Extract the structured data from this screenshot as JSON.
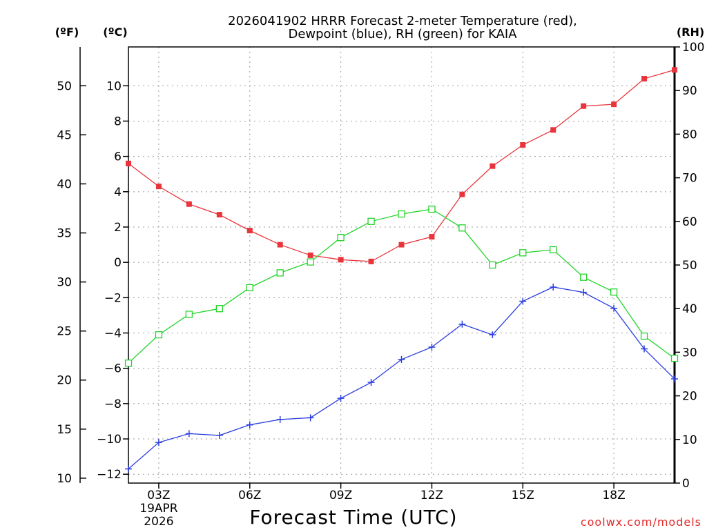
{
  "chart_data": {
    "type": "line",
    "title_line1": "2026041902 HRRR Forecast 2-meter Temperature (red),",
    "title_line2": "Dewpoint (blue), RH (green) for KAIA",
    "left_outer_unit": "(ºF)",
    "left_inner_unit": "(ºC)",
    "right_unit": "(RH)",
    "xlabel": "Forecast Time (UTC)",
    "credit": "coolwx.com/models",
    "x_hours": [
      2,
      3,
      4,
      5,
      6,
      7,
      8,
      9,
      10,
      11,
      12,
      13,
      14,
      15,
      16,
      17,
      18,
      19,
      20
    ],
    "x_ticks": [
      {
        "hour": 3,
        "label": "03Z",
        "sub1": "19APR",
        "sub2": "2026"
      },
      {
        "hour": 6,
        "label": "06Z",
        "sub1": "",
        "sub2": ""
      },
      {
        "hour": 9,
        "label": "09Z",
        "sub1": "",
        "sub2": ""
      },
      {
        "hour": 12,
        "label": "12Z",
        "sub1": "",
        "sub2": ""
      },
      {
        "hour": 15,
        "label": "15Z",
        "sub1": "",
        "sub2": ""
      },
      {
        "hour": 18,
        "label": "18Z",
        "sub1": "",
        "sub2": ""
      }
    ],
    "celsius_range": [
      -12.5,
      12.2
    ],
    "celsius_ticks": [
      "-12",
      "-10",
      "-8",
      "-6",
      "-4",
      "-2",
      "0",
      "2",
      "4",
      "6",
      "8",
      "10"
    ],
    "fahrenheit_ticks": [
      "10",
      "15",
      "20",
      "25",
      "30",
      "35",
      "40",
      "45",
      "50"
    ],
    "rh_range": [
      0,
      100
    ],
    "rh_ticks": [
      "0",
      "10",
      "20",
      "30",
      "40",
      "50",
      "60",
      "70",
      "80",
      "90",
      "100"
    ],
    "series": [
      {
        "name": "Temperature",
        "unit": "C",
        "color": "#e8343a",
        "marker": "filled-square",
        "values": [
          5.6,
          4.3,
          3.3,
          2.7,
          1.8,
          1.0,
          0.4,
          0.15,
          0.05,
          1.0,
          1.45,
          3.85,
          5.45,
          6.65,
          7.5,
          8.85,
          8.95,
          10.4,
          10.9
        ]
      },
      {
        "name": "Dewpoint",
        "unit": "C",
        "color": "#2b3fe0",
        "marker": "plus",
        "values": [
          -11.7,
          -10.2,
          -9.7,
          -9.8,
          -9.2,
          -8.9,
          -8.8,
          -7.7,
          -6.8,
          -5.5,
          -4.8,
          -3.5,
          -4.1,
          -2.2,
          -1.4,
          -1.7,
          -2.6,
          -4.9,
          -6.6
        ]
      },
      {
        "name": "RH",
        "unit": "%",
        "color": "#22d42a",
        "marker": "open-square",
        "values": [
          27.5,
          34.0,
          38.7,
          40.0,
          44.8,
          48.2,
          50.7,
          56.3,
          60.0,
          61.7,
          62.8,
          58.5,
          50.0,
          52.8,
          53.5,
          47.2,
          43.8,
          33.7,
          28.6
        ]
      }
    ]
  }
}
